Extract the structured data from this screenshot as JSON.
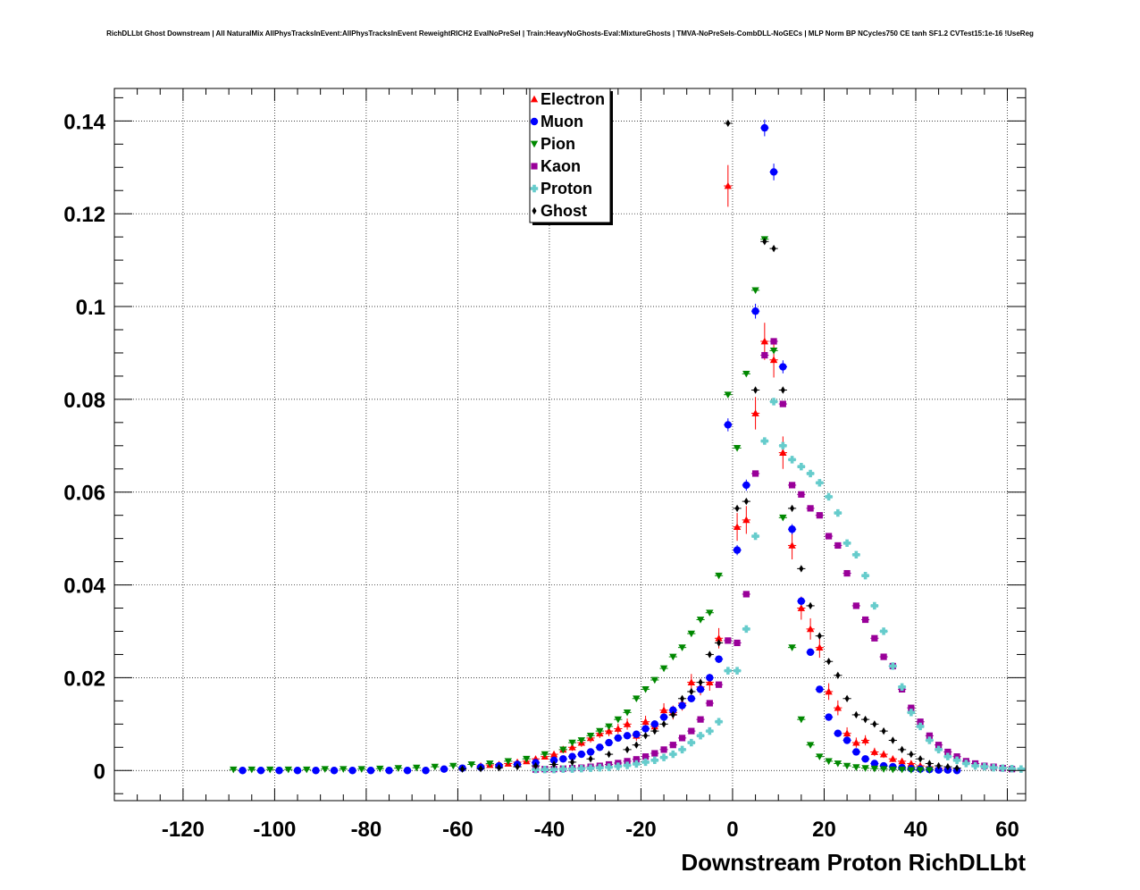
{
  "page": {
    "title": "RichDLLbt Ghost Downstream | All NaturalMix AllPhysTracksInEvent:AllPhysTracksInEvent ReweightRICH2 EvalNoPreSel | Train:HeavyNoGhosts-Eval:MixtureGhosts | TMVA-NoPreSels-CombDLL-NoGECs | MLP Norm BP NCycles750 CE tanh SF1.2 CVTest15:1e-16 !UseReg"
  },
  "chart_data": {
    "type": "scatter",
    "title": "RichDLLbt Ghost Downstream | All NaturalMix AllPhysTracksInEvent:AllPhysTracksInEvent ReweightRICH2 EvalNoPreSel | Train:HeavyNoGhosts-Eval:MixtureGhosts | TMVA-NoPreSels-CombDLL-NoGECs | MLP Norm BP NCycles750 CE tanh SF1.2 CVTest15:1e-16 !UseReg",
    "xlabel": "Downstream Proton RichDLLbt",
    "ylabel": "",
    "xlim": [
      -135,
      64
    ],
    "ylim": [
      -0.0065,
      0.147
    ],
    "xticks": [
      -120,
      -100,
      -80,
      -60,
      -40,
      -20,
      0,
      20,
      40,
      60
    ],
    "yticks": [
      0,
      0.02,
      0.04,
      0.06,
      0.08,
      0.1,
      0.12,
      0.14
    ],
    "xtick_labels": [
      "-120",
      "-100",
      "-80",
      "-60",
      "-40",
      "-20",
      "0",
      "20",
      "40",
      "60"
    ],
    "ytick_labels": [
      "0",
      "0.02",
      "0.04",
      "0.06",
      "0.08",
      "0.1",
      "0.12",
      "0.14"
    ],
    "grid": true,
    "legend_position": "top-center",
    "series": [
      {
        "name": "Electron",
        "color": "#ff0000",
        "marker": "triangle-up",
        "x": [
          -55,
          -53,
          -51,
          -49,
          -47,
          -45,
          -43,
          -41,
          -39,
          -37,
          -35,
          -33,
          -31,
          -29,
          -27,
          -25,
          -23,
          -21,
          -19,
          -17,
          -15,
          -13,
          -11,
          -9,
          -7,
          -5,
          -3,
          -1,
          1,
          3,
          5,
          7,
          9,
          11,
          13,
          15,
          17,
          19,
          21,
          23,
          25,
          27,
          29,
          31,
          33,
          35,
          37,
          39,
          41,
          43,
          45,
          47
        ],
        "y": [
          0.001,
          0.0012,
          0.0013,
          0.0015,
          0.0018,
          0.002,
          0.0025,
          0.003,
          0.0035,
          0.0045,
          0.005,
          0.006,
          0.007,
          0.008,
          0.0085,
          0.009,
          0.01,
          0.0075,
          0.0105,
          0.0095,
          0.013,
          0.0125,
          0.0145,
          0.019,
          0.018,
          0.019,
          0.0285,
          0.126,
          0.0525,
          0.054,
          0.077,
          0.0925,
          0.0885,
          0.0685,
          0.0485,
          0.035,
          0.0305,
          0.0265,
          0.017,
          0.0135,
          0.008,
          0.006,
          0.0065,
          0.004,
          0.0035,
          0.0025,
          0.002,
          0.0015,
          0.001,
          0.0008,
          0.0005,
          0.0004
        ],
        "err": [
          0.0004,
          0.0004,
          0.0004,
          0.0005,
          0.0005,
          0.0005,
          0.0006,
          0.0006,
          0.0007,
          0.0008,
          0.0008,
          0.0009,
          0.001,
          0.001,
          0.0011,
          0.0011,
          0.0012,
          0.0011,
          0.0013,
          0.0013,
          0.0015,
          0.0015,
          0.0016,
          0.0018,
          0.0018,
          0.0018,
          0.0022,
          0.0045,
          0.003,
          0.003,
          0.0035,
          0.004,
          0.0038,
          0.0035,
          0.003,
          0.0025,
          0.0023,
          0.0022,
          0.0018,
          0.0016,
          0.0013,
          0.0011,
          0.0011,
          0.0009,
          0.0008,
          0.0007,
          0.0006,
          0.0005,
          0.0004,
          0.0004,
          0.0003,
          0.0003
        ]
      },
      {
        "name": "Muon",
        "color": "#0000ff",
        "marker": "circle",
        "x": [
          -107,
          -103,
          -99,
          -95,
          -91,
          -87,
          -83,
          -79,
          -75,
          -71,
          -67,
          -63,
          -59,
          -55,
          -51,
          -47,
          -43,
          -39,
          -37,
          -35,
          -33,
          -31,
          -29,
          -27,
          -25,
          -23,
          -21,
          -19,
          -17,
          -15,
          -13,
          -11,
          -9,
          -7,
          -5,
          -3,
          -1,
          1,
          3,
          5,
          7,
          9,
          11,
          13,
          15,
          17,
          19,
          21,
          23,
          25,
          27,
          29,
          31,
          33,
          35,
          37,
          39,
          41,
          43,
          45,
          47,
          49
        ],
        "y": [
          0,
          0,
          0,
          0,
          0,
          0,
          0,
          0,
          0,
          0,
          0,
          0.0003,
          0.0005,
          0.0007,
          0.001,
          0.0013,
          0.0017,
          0.0022,
          0.0025,
          0.003,
          0.0035,
          0.004,
          0.005,
          0.006,
          0.007,
          0.0075,
          0.0078,
          0.009,
          0.01,
          0.0115,
          0.013,
          0.014,
          0.0155,
          0.0175,
          0.02,
          0.024,
          0.0745,
          0.0475,
          0.0615,
          0.099,
          0.1385,
          0.129,
          0.087,
          0.052,
          0.0365,
          0.0255,
          0.0175,
          0.0115,
          0.008,
          0.0065,
          0.004,
          0.0025,
          0.0015,
          0.001,
          0.0008,
          0.0006,
          0.0004,
          0.0003,
          0.0002,
          0.0001,
          0.0001,
          0
        ],
        "err": [
          0,
          0,
          0,
          0,
          0,
          0,
          0,
          0,
          0,
          0,
          0,
          0.0001,
          0.0001,
          0.0001,
          0.0002,
          0.0002,
          0.0002,
          0.0003,
          0.0003,
          0.0003,
          0.0003,
          0.0004,
          0.0004,
          0.0004,
          0.0005,
          0.0005,
          0.0005,
          0.0005,
          0.0005,
          0.0006,
          0.0006,
          0.0006,
          0.0007,
          0.0007,
          0.0008,
          0.0008,
          0.0014,
          0.0011,
          0.0012,
          0.0016,
          0.0018,
          0.0018,
          0.0014,
          0.0011,
          0.0009,
          0.0008,
          0.0007,
          0.0005,
          0.0004,
          0.0004,
          0.0003,
          0.0002,
          0.0002,
          0.0001,
          0.0001,
          0.0001,
          0.0001,
          0,
          0,
          0,
          0,
          0
        ]
      },
      {
        "name": "Pion",
        "color": "#008800",
        "marker": "triangle-down",
        "x": [
          -109,
          -105,
          -101,
          -97,
          -93,
          -89,
          -85,
          -81,
          -77,
          -73,
          -69,
          -65,
          -61,
          -57,
          -53,
          -49,
          -45,
          -41,
          -37,
          -35,
          -33,
          -31,
          -29,
          -27,
          -25,
          -23,
          -21,
          -19,
          -17,
          -15,
          -13,
          -11,
          -9,
          -7,
          -5,
          -3,
          -1,
          1,
          3,
          5,
          7,
          9,
          11,
          13,
          15,
          17,
          19,
          21,
          23,
          25,
          27,
          29,
          31,
          33,
          35,
          37,
          39,
          41,
          43
        ],
        "y": [
          0.0002,
          0.0002,
          0.0002,
          0.0002,
          0.0002,
          0.0003,
          0.0003,
          0.0003,
          0.0004,
          0.0005,
          0.0006,
          0.0008,
          0.001,
          0.0013,
          0.0015,
          0.002,
          0.0025,
          0.0035,
          0.0045,
          0.006,
          0.0065,
          0.0075,
          0.0085,
          0.0095,
          0.011,
          0.0125,
          0.0155,
          0.0175,
          0.0195,
          0.022,
          0.0245,
          0.0265,
          0.0295,
          0.0325,
          0.034,
          0.042,
          0.081,
          0.0695,
          0.0855,
          0.1035,
          0.1145,
          0.0905,
          0.0545,
          0.0265,
          0.011,
          0.0055,
          0.003,
          0.002,
          0.0015,
          0.001,
          0.0007,
          0.0005,
          0.0004,
          0.0003,
          0.0002,
          0.0002,
          0.0001,
          0.0001,
          0.0001
        ],
        "err": [
          0,
          0,
          0,
          0,
          0,
          0,
          0,
          0,
          0,
          0,
          0,
          0,
          0,
          0,
          0,
          0,
          0,
          0,
          0,
          0,
          0,
          0,
          0,
          0,
          0,
          0,
          0,
          0,
          0,
          0,
          0,
          0,
          0,
          0,
          0,
          0,
          0,
          0,
          0,
          0,
          0,
          0,
          0,
          0,
          0,
          0,
          0,
          0,
          0,
          0,
          0,
          0,
          0,
          0,
          0,
          0,
          0,
          0,
          0
        ]
      },
      {
        "name": "Kaon",
        "color": "#990099",
        "marker": "square",
        "x": [
          -43,
          -41,
          -39,
          -37,
          -35,
          -33,
          -31,
          -29,
          -27,
          -25,
          -23,
          -21,
          -19,
          -17,
          -15,
          -13,
          -11,
          -9,
          -7,
          -5,
          -3,
          -1,
          1,
          3,
          5,
          7,
          9,
          11,
          13,
          15,
          17,
          19,
          21,
          23,
          25,
          27,
          29,
          31,
          33,
          35,
          37,
          39,
          41,
          43,
          45,
          47,
          49,
          51,
          53,
          55,
          57,
          59,
          61
        ],
        "y": [
          0.0002,
          0.0003,
          0.0003,
          0.0004,
          0.0005,
          0.0006,
          0.0008,
          0.001,
          0.0013,
          0.0016,
          0.002,
          0.0024,
          0.003,
          0.0037,
          0.0045,
          0.0055,
          0.007,
          0.0085,
          0.011,
          0.0145,
          0.0185,
          0.028,
          0.0275,
          0.038,
          0.064,
          0.0895,
          0.0925,
          0.079,
          0.0615,
          0.0595,
          0.0565,
          0.055,
          0.0505,
          0.0485,
          0.0425,
          0.0355,
          0.0325,
          0.0285,
          0.0245,
          0.0225,
          0.0175,
          0.0135,
          0.0105,
          0.0075,
          0.0055,
          0.004,
          0.003,
          0.002,
          0.0015,
          0.001,
          0.0008,
          0.0005,
          0.0003
        ],
        "err": [
          0,
          0,
          0,
          0,
          0,
          0,
          0,
          0,
          0,
          0,
          0,
          0,
          0,
          0,
          0,
          0,
          0,
          0,
          0,
          0,
          0,
          0,
          0,
          0,
          0,
          0,
          0,
          0,
          0,
          0,
          0,
          0,
          0,
          0,
          0,
          0,
          0,
          0,
          0,
          0,
          0,
          0,
          0,
          0,
          0,
          0,
          0,
          0,
          0,
          0,
          0,
          0,
          0
        ]
      },
      {
        "name": "Proton",
        "color": "#66cccc",
        "marker": "cross",
        "x": [
          -43,
          -41,
          -39,
          -37,
          -35,
          -33,
          -31,
          -29,
          -27,
          -25,
          -23,
          -21,
          -19,
          -17,
          -15,
          -13,
          -11,
          -9,
          -7,
          -5,
          -3,
          -1,
          1,
          3,
          5,
          7,
          9,
          11,
          13,
          15,
          17,
          19,
          21,
          23,
          25,
          27,
          29,
          31,
          33,
          35,
          37,
          39,
          41,
          43,
          45,
          47,
          49,
          51,
          53,
          55,
          57,
          59,
          61,
          63
        ],
        "y": [
          0.0002,
          0.0002,
          0.0002,
          0.0003,
          0.0003,
          0.0004,
          0.0005,
          0.0006,
          0.0007,
          0.0009,
          0.0011,
          0.0014,
          0.0018,
          0.0022,
          0.0028,
          0.0035,
          0.0045,
          0.006,
          0.0075,
          0.0085,
          0.0105,
          0.0215,
          0.0215,
          0.0305,
          0.0505,
          0.071,
          0.0795,
          0.07,
          0.067,
          0.0655,
          0.064,
          0.062,
          0.059,
          0.0555,
          0.049,
          0.0465,
          0.042,
          0.0355,
          0.03,
          0.0225,
          0.018,
          0.0125,
          0.0095,
          0.0065,
          0.0045,
          0.003,
          0.0022,
          0.0015,
          0.001,
          0.0008,
          0.0006,
          0.0005,
          0.0004,
          0.0003
        ],
        "err": [
          0,
          0,
          0,
          0,
          0,
          0,
          0,
          0,
          0,
          0,
          0,
          0,
          0,
          0,
          0,
          0,
          0,
          0,
          0,
          0,
          0,
          0,
          0,
          0,
          0,
          0,
          0,
          0,
          0,
          0,
          0,
          0,
          0,
          0,
          0,
          0,
          0,
          0,
          0,
          0,
          0,
          0,
          0,
          0,
          0,
          0,
          0,
          0,
          0,
          0,
          0,
          0,
          0,
          0
        ]
      },
      {
        "name": "Ghost",
        "color": "#000000",
        "marker": "diamond",
        "x": [
          -59,
          -55,
          -51,
          -47,
          -43,
          -39,
          -35,
          -31,
          -27,
          -23,
          -21,
          -19,
          -17,
          -15,
          -13,
          -11,
          -9,
          -7,
          -5,
          -3,
          -1,
          1,
          3,
          5,
          7,
          9,
          11,
          13,
          15,
          17,
          19,
          21,
          23,
          25,
          27,
          29,
          31,
          33,
          35,
          37,
          39,
          41,
          43,
          45,
          47,
          49
        ],
        "y": [
          0.0003,
          0.0004,
          0.0006,
          0.0008,
          0.001,
          0.0013,
          0.0018,
          0.0025,
          0.0035,
          0.0045,
          0.0055,
          0.0075,
          0.0085,
          0.01,
          0.012,
          0.0155,
          0.017,
          0.019,
          0.025,
          0.0275,
          0.1395,
          0.0565,
          0.058,
          0.082,
          0.114,
          0.1125,
          0.082,
          0.0565,
          0.0435,
          0.0355,
          0.029,
          0.0235,
          0.0205,
          0.0155,
          0.012,
          0.011,
          0.01,
          0.0085,
          0.0065,
          0.0045,
          0.0035,
          0.0025,
          0.0015,
          0.001,
          0.0008,
          0.0005
        ],
        "err": [
          0,
          0,
          0,
          0,
          0,
          0,
          0,
          0,
          0,
          0,
          0,
          0,
          0,
          0,
          0,
          0,
          0,
          0,
          0,
          0,
          0,
          0,
          0,
          0,
          0,
          0,
          0,
          0,
          0,
          0,
          0,
          0,
          0,
          0,
          0,
          0,
          0,
          0,
          0,
          0,
          0,
          0,
          0,
          0,
          0,
          0
        ]
      }
    ]
  }
}
